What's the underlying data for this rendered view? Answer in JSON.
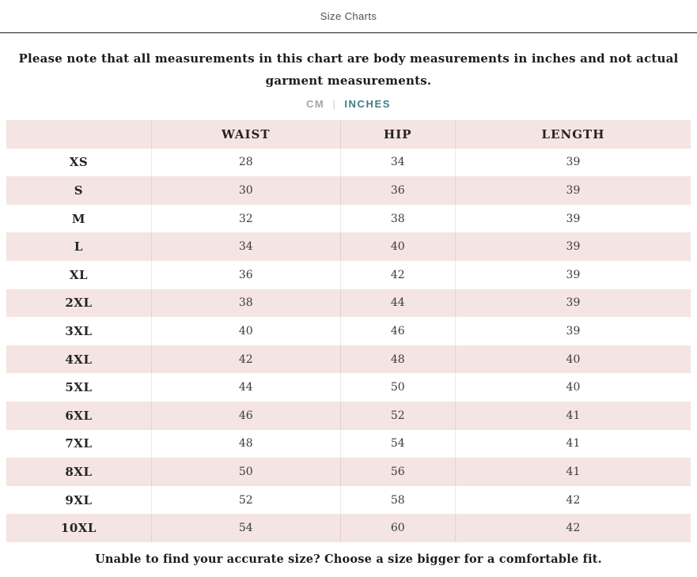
{
  "page": {
    "title": "Size Charts",
    "note": "Please note that all measurements in this chart are body measurements in inches and not actual garment measurements.",
    "footer": "Unable to find your accurate size? Choose a size bigger for a comfortable fit."
  },
  "unit_toggle": {
    "separator": "|",
    "options": [
      {
        "label": "CM",
        "active": false
      },
      {
        "label": "INCHES",
        "active": true
      }
    ]
  },
  "size_chart": {
    "headers": [
      "",
      "WAIST",
      "HIP",
      "LENGTH"
    ],
    "rows": [
      [
        "XS",
        "28",
        "34",
        "39"
      ],
      [
        "S",
        "30",
        "36",
        "39"
      ],
      [
        "M",
        "32",
        "38",
        "39"
      ],
      [
        "L",
        "34",
        "40",
        "39"
      ],
      [
        "XL",
        "36",
        "42",
        "39"
      ],
      [
        "2XL",
        "38",
        "44",
        "39"
      ],
      [
        "3XL",
        "40",
        "46",
        "39"
      ],
      [
        "4XL",
        "42",
        "48",
        "40"
      ],
      [
        "5XL",
        "44",
        "50",
        "40"
      ],
      [
        "6XL",
        "46",
        "52",
        "41"
      ],
      [
        "7XL",
        "48",
        "54",
        "41"
      ],
      [
        "8XL",
        "50",
        "56",
        "41"
      ],
      [
        "9XL",
        "52",
        "58",
        "42"
      ],
      [
        "10XL",
        "54",
        "60",
        "42"
      ]
    ]
  },
  "colors": {
    "accent_teal": "#3e7f86",
    "row_pink": "#f4e4e2",
    "inactive_gray": "#a5a5a5",
    "divider_dark": "#1d1d1d",
    "text_dark": "#1c1c1c"
  }
}
